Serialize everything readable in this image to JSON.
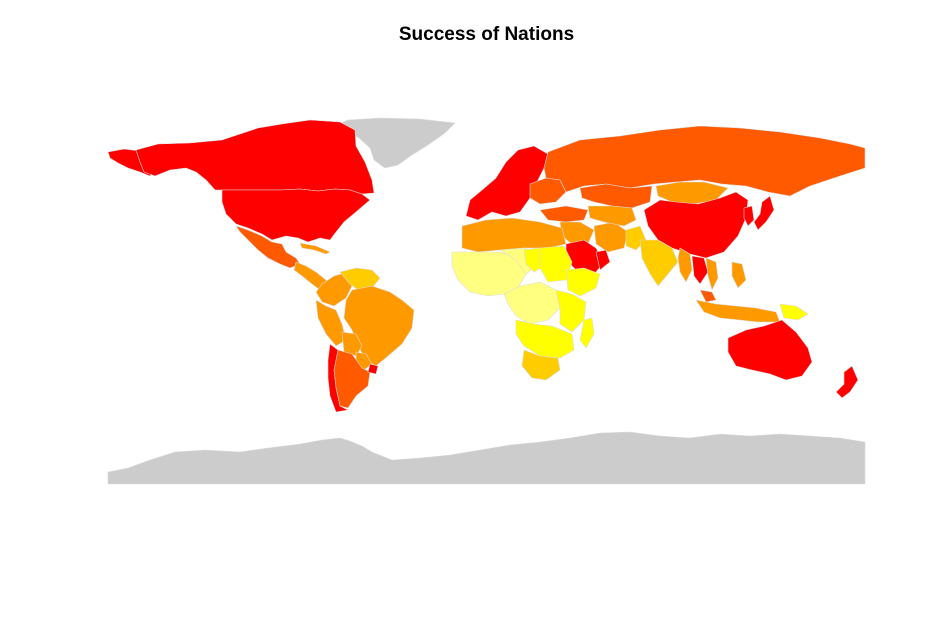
{
  "title": "Success of Nations",
  "map": {
    "projection": "equirectangular",
    "no_data_color": "#cccccc",
    "palette": [
      "#ff0000",
      "#ff5a00",
      "#ff9900",
      "#ffcc00",
      "#ffff00",
      "#ffff80"
    ],
    "regions": [
      {
        "name": "Greenland",
        "level": "no-data"
      },
      {
        "name": "Antarctica",
        "level": "no-data"
      },
      {
        "name": "Canada",
        "level": 1
      },
      {
        "name": "United States",
        "level": 1
      },
      {
        "name": "Alaska",
        "level": 1
      },
      {
        "name": "Mexico",
        "level": 2
      },
      {
        "name": "Central America",
        "level": 3
      },
      {
        "name": "Caribbean",
        "level": 3
      },
      {
        "name": "Venezuela",
        "level": 4
      },
      {
        "name": "Colombia",
        "level": 3
      },
      {
        "name": "Brazil",
        "level": 3
      },
      {
        "name": "Peru",
        "level": 3
      },
      {
        "name": "Bolivia",
        "level": 3
      },
      {
        "name": "Paraguay",
        "level": 3
      },
      {
        "name": "Argentina",
        "level": 2
      },
      {
        "name": "Chile",
        "level": 1
      },
      {
        "name": "Uruguay",
        "level": 1
      },
      {
        "name": "Western Europe",
        "level": 1
      },
      {
        "name": "Eastern Europe",
        "level": 2
      },
      {
        "name": "Russia",
        "level": 2
      },
      {
        "name": "Kazakhstan",
        "level": 2
      },
      {
        "name": "Mongolia",
        "level": 3
      },
      {
        "name": "China",
        "level": 1
      },
      {
        "name": "Japan",
        "level": 1
      },
      {
        "name": "Korea",
        "level": 1
      },
      {
        "name": "Turkey",
        "level": 2
      },
      {
        "name": "North Africa",
        "level": 3
      },
      {
        "name": "Middle East",
        "level": 3
      },
      {
        "name": "Saudi Arabia",
        "level": 1
      },
      {
        "name": "Arabian Peninsula",
        "level": 1
      },
      {
        "name": "Iran",
        "level": 3
      },
      {
        "name": "Central Asia",
        "level": 3
      },
      {
        "name": "Pakistan",
        "level": 4
      },
      {
        "name": "India",
        "level": 4
      },
      {
        "name": "Myanmar",
        "level": 3
      },
      {
        "name": "Thailand",
        "level": 1
      },
      {
        "name": "Vietnam",
        "level": 3
      },
      {
        "name": "Indonesia",
        "level": 3
      },
      {
        "name": "Malaysia",
        "level": 2
      },
      {
        "name": "Philippines",
        "level": 3
      },
      {
        "name": "Papua New Guinea",
        "level": 5
      },
      {
        "name": "Australia",
        "level": 1
      },
      {
        "name": "New Zealand",
        "level": 1
      },
      {
        "name": "West Africa",
        "level": 6
      },
      {
        "name": "Sahel",
        "level": 6
      },
      {
        "name": "Chad",
        "level": 5
      },
      {
        "name": "Sudan",
        "level": 5
      },
      {
        "name": "Horn of Africa",
        "level": 5
      },
      {
        "name": "Central Africa",
        "level": 6
      },
      {
        "name": "East Africa",
        "level": 5
      },
      {
        "name": "Southern Africa",
        "level": 5
      },
      {
        "name": "South Africa",
        "level": 4
      },
      {
        "name": "Madagascar",
        "level": 5
      }
    ]
  }
}
